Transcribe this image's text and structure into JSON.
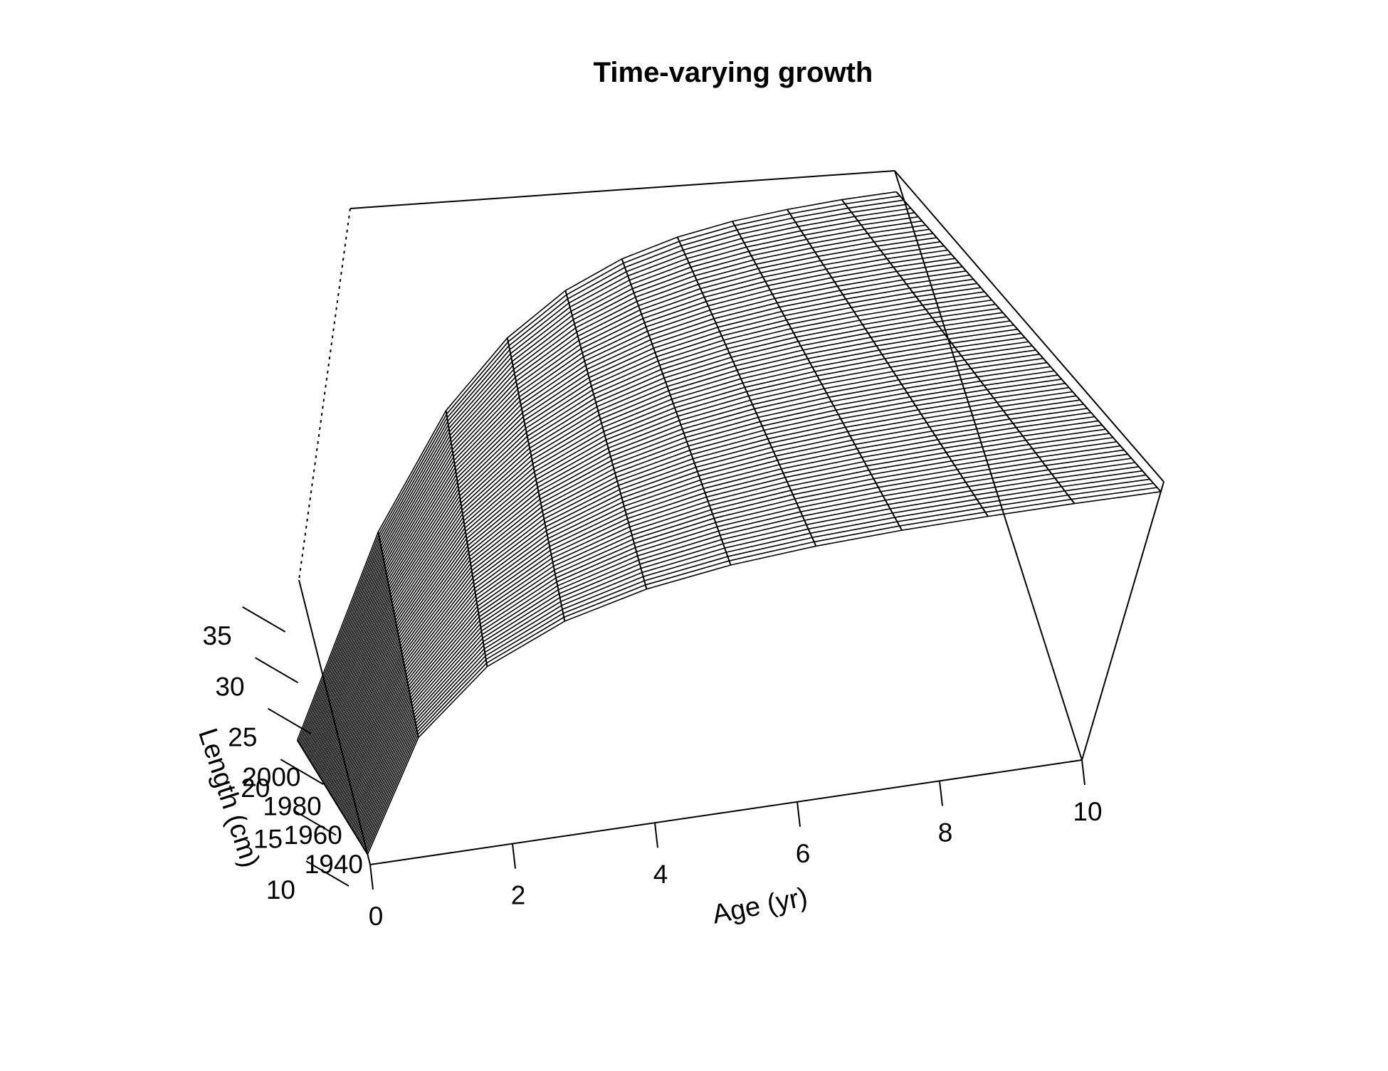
{
  "chart_data": {
    "type": "surface",
    "title": "Time-varying growth",
    "xlabel": "Age (yr)",
    "ylabel": "",
    "zlabel": "Length (cm)",
    "x_ticks": [
      "0",
      "2",
      "4",
      "6",
      "8",
      "10"
    ],
    "y_ticks": [
      "1940",
      "1960",
      "1980",
      "2000"
    ],
    "z_ticks": [
      "10",
      "15",
      "20",
      "25",
      "30",
      "35"
    ],
    "xlim": [
      0,
      10
    ],
    "ylim": [
      1940,
      2012
    ],
    "zlim": [
      10,
      38
    ],
    "x": [
      0,
      1,
      2,
      3,
      4,
      5,
      6,
      7,
      8,
      9,
      10
    ],
    "series": [
      {
        "year": 1940,
        "values": [
          11.0,
          21.5,
          27.5,
          31.0,
          33.2,
          34.6,
          35.5,
          36.1,
          36.5,
          36.8,
          37.0
        ]
      },
      {
        "year": 2012,
        "values": [
          11.0,
          21.5,
          27.5,
          31.0,
          33.2,
          34.6,
          35.5,
          36.1,
          36.5,
          36.8,
          37.0
        ]
      }
    ],
    "line_color": "#000000"
  }
}
